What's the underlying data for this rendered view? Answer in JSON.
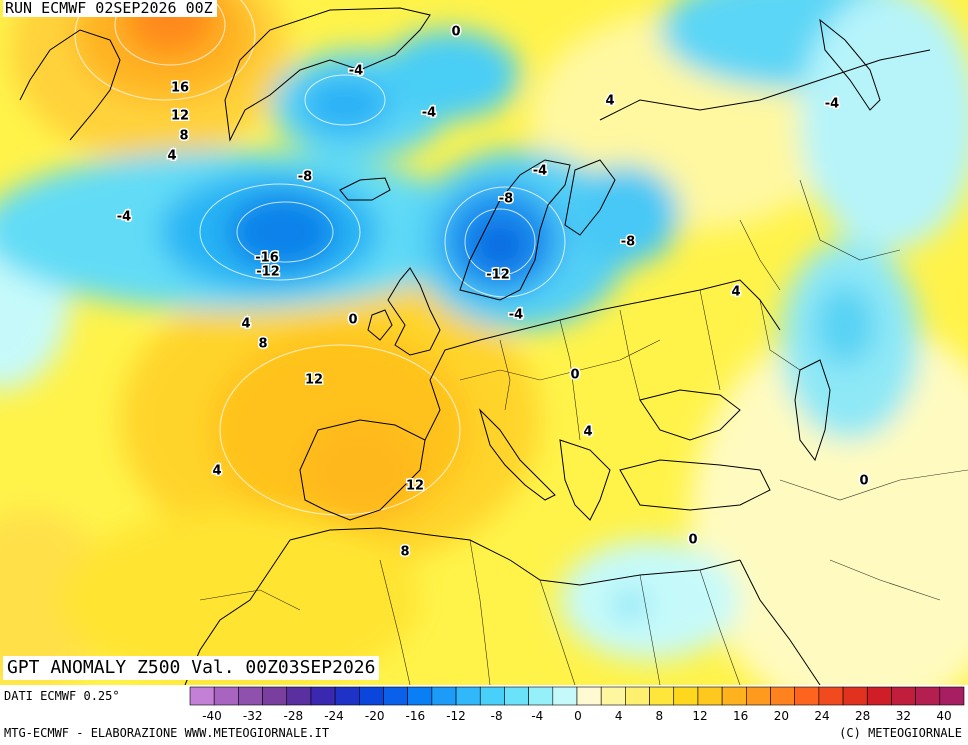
{
  "header": {
    "run_title": "RUN ECMWF 02SEP2026 00Z",
    "main_title": "GPT ANOMALY Z500 Val. 00Z03SEP2026"
  },
  "footer": {
    "data_source": "DATI ECMWF 0.25°",
    "credits": "MTG-ECMWF - ELABORAZIONE WWW.METEOGIORNALE.IT",
    "copyright": "(C) METEOGIORNALE"
  },
  "colorbar": {
    "labels": [
      "-40",
      "-32",
      "-28",
      "-24",
      "-20",
      "-16",
      "-12",
      "-8",
      "-4",
      "0",
      "4",
      "8",
      "12",
      "16",
      "20",
      "24",
      "28",
      "32",
      "40"
    ],
    "colors": [
      "#c47fd6",
      "#a964c2",
      "#9050ae",
      "#7a3f9e",
      "#5a2fa0",
      "#3a28b0",
      "#1e32c8",
      "#0a46dc",
      "#0a60ea",
      "#0a7ef4",
      "#1c9cf8",
      "#30b8fa",
      "#48d0fa",
      "#6ae2fa",
      "#96f0fa",
      "#c6fafa",
      "#fffad2",
      "#fff7a0",
      "#fff070",
      "#ffe63a",
      "#ffd81e",
      "#ffc81e",
      "#ffb21e",
      "#ff9a1e",
      "#ff821e",
      "#ff641e",
      "#f04a1e",
      "#e0321e",
      "#d01e28",
      "#c01e3c",
      "#b41e50",
      "#a81e62"
    ]
  },
  "map_labels": [
    {
      "text": "16",
      "kind": "positive"
    },
    {
      "text": "12",
      "kind": "positive"
    },
    {
      "text": "8",
      "kind": "positive"
    },
    {
      "text": "4",
      "kind": "positive"
    },
    {
      "text": "0",
      "kind": "zero"
    },
    {
      "text": "-4",
      "kind": "negative"
    },
    {
      "text": "-4",
      "kind": "negative"
    },
    {
      "text": "4",
      "kind": "positive"
    },
    {
      "text": "-4",
      "kind": "negative"
    },
    {
      "text": "-8",
      "kind": "negative"
    },
    {
      "text": "-4",
      "kind": "negative"
    },
    {
      "text": "-16",
      "kind": "negative"
    },
    {
      "text": "-12",
      "kind": "negative"
    },
    {
      "text": "-4",
      "kind": "negative"
    },
    {
      "text": "-8",
      "kind": "negative"
    },
    {
      "text": "-8",
      "kind": "negative"
    },
    {
      "text": "-12",
      "kind": "negative"
    },
    {
      "text": "-4",
      "kind": "negative"
    },
    {
      "text": "4",
      "kind": "positive"
    },
    {
      "text": "4",
      "kind": "positive"
    },
    {
      "text": "0",
      "kind": "zero"
    },
    {
      "text": "8",
      "kind": "positive"
    },
    {
      "text": "12",
      "kind": "positive"
    },
    {
      "text": "0",
      "kind": "zero"
    },
    {
      "text": "4",
      "kind": "positive"
    },
    {
      "text": "4",
      "kind": "positive"
    },
    {
      "text": "12",
      "kind": "positive"
    },
    {
      "text": "0",
      "kind": "zero"
    },
    {
      "text": "8",
      "kind": "positive"
    },
    {
      "text": "0",
      "kind": "zero"
    }
  ]
}
